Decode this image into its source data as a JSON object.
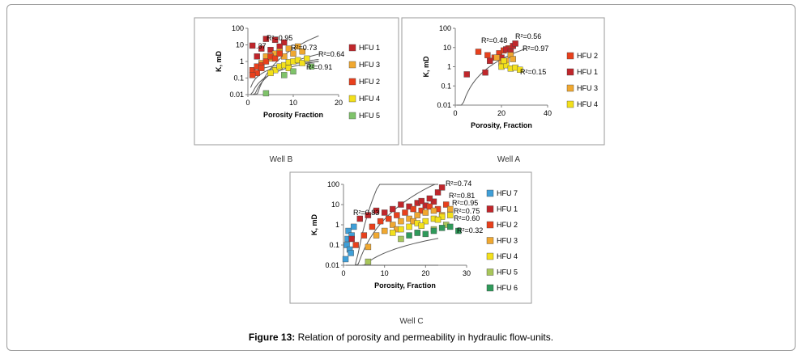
{
  "caption": {
    "label": "Figure 13:",
    "text": "Relation of porosity and permeability in hydraulic flow-units."
  },
  "chart_data": [
    {
      "type": "scatter",
      "name": "well-b",
      "title": "Well B",
      "xlabel": "Porosity Fraction",
      "ylabel": "K, mD",
      "xlim": [
        0,
        20
      ],
      "ylim": [
        0.01,
        100
      ],
      "yscale": "log",
      "xticks": [
        "0",
        "10",
        "20"
      ],
      "yticks": [
        "0.01",
        "0.1",
        "1",
        "10",
        "100"
      ],
      "series": [
        {
          "name": "HFU 1",
          "color": "#c0262b",
          "points": [
            [
              1,
              9
            ],
            [
              3,
              6
            ],
            [
              4,
              23
            ],
            [
              6,
              20
            ],
            [
              8,
              14
            ],
            [
              2,
              2
            ],
            [
              5,
              5
            ],
            [
              7,
              8
            ]
          ]
        },
        {
          "name": "HFU 3",
          "color": "#f0a830",
          "points": [
            [
              3,
              0.8
            ],
            [
              5,
              1.5
            ],
            [
              6,
              3
            ],
            [
              7,
              4
            ],
            [
              8,
              2
            ],
            [
              9,
              6
            ],
            [
              10,
              3
            ],
            [
              4,
              2
            ],
            [
              11,
              8
            ],
            [
              12,
              4
            ]
          ]
        },
        {
          "name": "HFU 2",
          "color": "#e8401c",
          "points": [
            [
              1,
              0.3
            ],
            [
              2,
              0.5
            ],
            [
              3,
              0.6
            ],
            [
              4,
              1
            ],
            [
              5,
              2
            ],
            [
              6,
              1.5
            ],
            [
              7,
              3
            ],
            [
              2,
              0.2
            ],
            [
              3,
              0.4
            ],
            [
              1,
              0.15
            ]
          ]
        },
        {
          "name": "HFU 4",
          "color": "#f3e01b",
          "points": [
            [
              6,
              0.3
            ],
            [
              7,
              0.5
            ],
            [
              8,
              0.6
            ],
            [
              9,
              0.9
            ],
            [
              10,
              1
            ],
            [
              11,
              1.2
            ],
            [
              12,
              0.8
            ],
            [
              5,
              0.2
            ],
            [
              9,
              0.4
            ],
            [
              13,
              1.5
            ]
          ]
        },
        {
          "name": "HFU 5",
          "color": "#7fc36a",
          "points": [
            [
              4,
              0.012
            ],
            [
              8,
              0.15
            ],
            [
              10,
              0.25
            ],
            [
              14,
              0.5
            ]
          ]
        }
      ],
      "r2_labels": [
        "R²=0.95",
        ".37",
        "R²=0.73",
        "R²=0.64",
        "R²=0.91"
      ]
    },
    {
      "type": "scatter",
      "name": "well-a",
      "title": "Well A",
      "xlabel": "Porosity, Fraction",
      "ylabel": "K, mD",
      "xlim": [
        0,
        40
      ],
      "ylim": [
        0.01,
        100
      ],
      "yscale": "log",
      "xticks": [
        "0",
        "20",
        "40"
      ],
      "yticks": [
        "0.01",
        "0.1",
        "1",
        "10",
        "100"
      ],
      "series": [
        {
          "name": "HFU 2",
          "color": "#e8401c",
          "points": [
            [
              10,
              6
            ],
            [
              14,
              4
            ],
            [
              17,
              3
            ],
            [
              19,
              5
            ],
            [
              21,
              7
            ],
            [
              23,
              9
            ]
          ]
        },
        {
          "name": "HFU 1",
          "color": "#c0262b",
          "points": [
            [
              5,
              0.4
            ],
            [
              13,
              0.5
            ],
            [
              20,
              3
            ],
            [
              22,
              8
            ],
            [
              25,
              12
            ],
            [
              26,
              16
            ],
            [
              15,
              2
            ],
            [
              24,
              6
            ]
          ]
        },
        {
          "name": "HFU 3",
          "color": "#f0a830",
          "points": [
            [
              18,
              3
            ],
            [
              20,
              1.5
            ],
            [
              22,
              2
            ],
            [
              24,
              4
            ],
            [
              25,
              2.5
            ]
          ]
        },
        {
          "name": "HFU 4",
          "color": "#f3e01b",
          "points": [
            [
              20,
              1
            ],
            [
              22,
              1.2
            ],
            [
              24,
              0.8
            ],
            [
              26,
              0.9
            ],
            [
              28,
              0.7
            ],
            [
              21,
              2
            ]
          ]
        }
      ],
      "r2_labels": [
        "R²=0.48",
        "R²=0.56",
        "R²=0.97",
        "R²=0.15"
      ]
    },
    {
      "type": "scatter",
      "name": "well-c",
      "title": "Well C",
      "xlabel": "Porosity, Fraction",
      "ylabel": "K, mD",
      "xlim": [
        0,
        30
      ],
      "ylim": [
        0.01,
        100
      ],
      "yscale": "log",
      "xticks": [
        "0",
        "10",
        "20",
        "30"
      ],
      "yticks": [
        "0.01",
        "0.1",
        "1",
        "10",
        "100"
      ],
      "series": [
        {
          "name": "HFU 7",
          "color": "#3f9fd8",
          "points": [
            [
              0.5,
              0.02
            ],
            [
              0.8,
              0.1
            ],
            [
              1,
              0.2
            ],
            [
              1.2,
              0.5
            ],
            [
              1.5,
              0.06
            ],
            [
              2,
              0.3
            ],
            [
              2.5,
              0.8
            ],
            [
              1.8,
              0.04
            ]
          ]
        },
        {
          "name": "HFU 1",
          "color": "#c0262b",
          "points": [
            [
              2,
              0.2
            ],
            [
              4,
              2
            ],
            [
              6,
              3
            ],
            [
              8,
              5
            ],
            [
              10,
              4
            ],
            [
              12,
              6
            ],
            [
              14,
              10
            ],
            [
              16,
              8
            ],
            [
              18,
              12
            ],
            [
              20,
              9
            ],
            [
              22,
              14
            ],
            [
              23,
              40
            ],
            [
              24,
              70
            ],
            [
              21,
              20
            ],
            [
              19,
              15
            ]
          ]
        },
        {
          "name": "HFU 2",
          "color": "#e8401c",
          "points": [
            [
              3,
              0.1
            ],
            [
              5,
              0.3
            ],
            [
              7,
              0.8
            ],
            [
              9,
              1.5
            ],
            [
              11,
              2
            ],
            [
              13,
              3
            ],
            [
              15,
              4
            ],
            [
              17,
              6
            ],
            [
              19,
              5
            ],
            [
              21,
              8
            ],
            [
              23,
              6
            ],
            [
              25,
              10
            ]
          ]
        },
        {
          "name": "HFU 3",
          "color": "#f0a830",
          "points": [
            [
              6,
              0.08
            ],
            [
              8,
              0.3
            ],
            [
              10,
              0.5
            ],
            [
              12,
              1
            ],
            [
              14,
              1.5
            ],
            [
              16,
              2
            ],
            [
              18,
              3
            ],
            [
              20,
              4
            ],
            [
              22,
              5
            ],
            [
              24,
              3
            ],
            [
              26,
              6
            ],
            [
              17,
              1.5
            ],
            [
              13,
              0.6
            ]
          ]
        },
        {
          "name": "HFU 4",
          "color": "#f3e01b",
          "points": [
            [
              12,
              0.4
            ],
            [
              14,
              0.6
            ],
            [
              16,
              0.8
            ],
            [
              18,
              1.2
            ],
            [
              20,
              1.5
            ],
            [
              22,
              2
            ],
            [
              24,
              2.5
            ],
            [
              26,
              3
            ],
            [
              19,
              0.9
            ],
            [
              23,
              1.8
            ]
          ]
        },
        {
          "name": "HFU 5",
          "color": "#a8c65a",
          "points": [
            [
              6,
              0.015
            ],
            [
              14,
              0.2
            ],
            [
              18,
              0.4
            ],
            [
              22,
              0.6
            ],
            [
              25,
              1
            ]
          ]
        },
        {
          "name": "HFU 6",
          "color": "#2f9a5a",
          "points": [
            [
              16,
              0.3
            ],
            [
              18,
              0.4
            ],
            [
              20,
              0.35
            ],
            [
              22,
              0.5
            ],
            [
              24,
              0.7
            ],
            [
              26,
              0.8
            ],
            [
              28,
              0.5
            ]
          ]
        }
      ],
      "r2_labels": [
        "R²=0.83",
        "R²=0.74",
        "R²=0.81",
        "R²=0.95",
        "R²=0.75",
        "R²=0.60",
        "R²=0.32"
      ]
    }
  ]
}
